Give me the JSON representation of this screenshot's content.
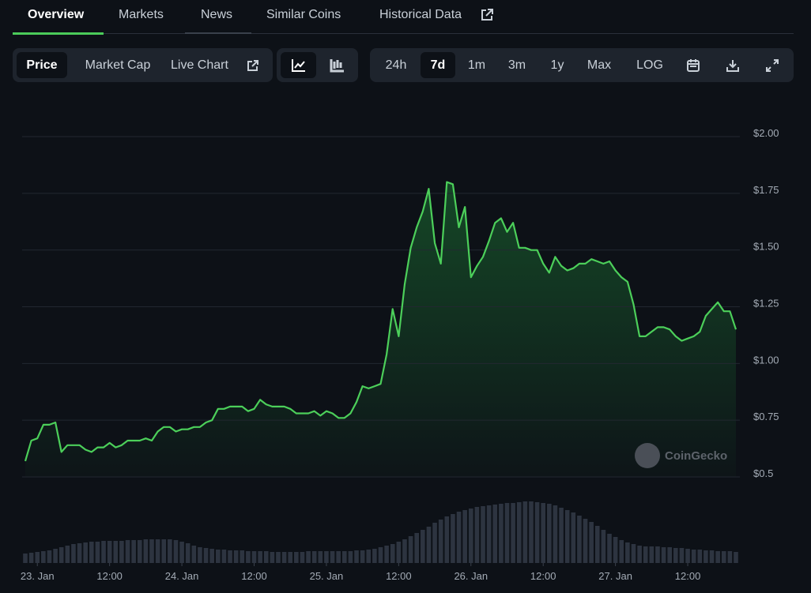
{
  "tabs": [
    "Overview",
    "Markets",
    "News",
    "Similar Coins",
    "Historical Data"
  ],
  "metric_buttons": [
    "Price",
    "Market Cap",
    "Live Chart"
  ],
  "range_buttons": [
    "24h",
    "7d",
    "1m",
    "3m",
    "1y",
    "Max",
    "LOG"
  ],
  "watermark": "CoinGecko",
  "chart_data": {
    "type": "line",
    "x": [
      -2,
      -1,
      0,
      1,
      2,
      3,
      4,
      5,
      6,
      7,
      8,
      9,
      10,
      11,
      12,
      13,
      14,
      15,
      16,
      17,
      18,
      19,
      20,
      21,
      22,
      23,
      24,
      25,
      26,
      27,
      28,
      29,
      30,
      31,
      32,
      33,
      34,
      35,
      36,
      37,
      38,
      39,
      40,
      41,
      42,
      43,
      44,
      45,
      46,
      47,
      48,
      49,
      50,
      51,
      52,
      53,
      54,
      55,
      56,
      57,
      58,
      59,
      60,
      61,
      62,
      63,
      64,
      65,
      66,
      67,
      68,
      69,
      70,
      71,
      72,
      73,
      74,
      75,
      76,
      77,
      78,
      79,
      80,
      81,
      82,
      83,
      84,
      85,
      86,
      87,
      88,
      89,
      90,
      91,
      92,
      93,
      94,
      95,
      96,
      97,
      98,
      99,
      100,
      101,
      102,
      103,
      104,
      105,
      106,
      107,
      108,
      109,
      110,
      111,
      112,
      113,
      114,
      115,
      116
    ],
    "series": [
      {
        "color": "#4ccf5a",
        "values": [
          0.57,
          0.66,
          0.67,
          0.73,
          0.73,
          0.74,
          0.61,
          0.64,
          0.64,
          0.64,
          0.62,
          0.61,
          0.63,
          0.63,
          0.65,
          0.63,
          0.64,
          0.66,
          0.66,
          0.66,
          0.67,
          0.66,
          0.7,
          0.72,
          0.72,
          0.7,
          0.71,
          0.71,
          0.72,
          0.72,
          0.74,
          0.75,
          0.8,
          0.8,
          0.81,
          0.81,
          0.81,
          0.79,
          0.8,
          0.84,
          0.82,
          0.81,
          0.81,
          0.81,
          0.8,
          0.78,
          0.78,
          0.78,
          0.79,
          0.77,
          0.79,
          0.78,
          0.76,
          0.76,
          0.78,
          0.83,
          0.9,
          0.89,
          0.9,
          0.91,
          1.04,
          1.24,
          1.12,
          1.35,
          1.51,
          1.6,
          1.67,
          1.77,
          1.53,
          1.44,
          1.8,
          1.79,
          1.6,
          1.69,
          1.38,
          1.43,
          1.47,
          1.54,
          1.62,
          1.64,
          1.58,
          1.62,
          1.51,
          1.51,
          1.5,
          1.5,
          1.44,
          1.4,
          1.47,
          1.43,
          1.41,
          1.42,
          1.44,
          1.44,
          1.46,
          1.45,
          1.44,
          1.45,
          1.41,
          1.38,
          1.36,
          1.26,
          1.12,
          1.12,
          1.14,
          1.16,
          1.16,
          1.15,
          1.12,
          1.1,
          1.11,
          1.12,
          1.14,
          1.21,
          1.24,
          1.27,
          1.23,
          1.23,
          1.15
        ]
      },
      {
        "color": "#2d3440",
        "axis": "y2",
        "values": [
          12,
          13,
          14,
          15,
          16,
          18,
          20,
          22,
          24,
          25,
          26,
          27,
          27,
          28,
          28,
          28,
          28,
          29,
          29,
          29,
          30,
          30,
          30,
          30,
          30,
          29,
          27,
          25,
          22,
          20,
          19,
          18,
          17,
          17,
          16,
          16,
          16,
          15,
          15,
          15,
          15,
          14,
          14,
          14,
          14,
          14,
          14,
          15,
          15,
          15,
          15,
          15,
          15,
          15,
          15,
          16,
          16,
          17,
          18,
          20,
          22,
          24,
          27,
          30,
          34,
          38,
          42,
          46,
          51,
          55,
          59,
          62,
          65,
          67,
          69,
          71,
          72,
          73,
          74,
          75,
          76,
          76,
          77,
          78,
          78,
          77,
          76,
          75,
          73,
          70,
          67,
          64,
          60,
          56,
          52,
          47,
          42,
          37,
          33,
          29,
          26,
          24,
          22,
          21,
          21,
          21,
          20,
          20,
          19,
          19,
          18,
          17,
          17,
          16,
          16,
          15,
          15,
          15,
          14
        ]
      }
    ],
    "xlim": [
      -2,
      116
    ],
    "xticks": [
      {
        "value": 0,
        "label": "23. Jan"
      },
      {
        "value": 12,
        "label": "12:00"
      },
      {
        "value": 24,
        "label": "24. Jan"
      },
      {
        "value": 36,
        "label": "12:00"
      },
      {
        "value": 48,
        "label": "25. Jan"
      },
      {
        "value": 60,
        "label": "12:00"
      },
      {
        "value": 72,
        "label": "26. Jan"
      },
      {
        "value": 84,
        "label": "12:00"
      },
      {
        "value": 96,
        "label": "27. Jan"
      },
      {
        "value": 108,
        "label": "12:00"
      }
    ],
    "ylim": [
      0.5,
      2
    ],
    "yticks": [
      {
        "value": 0.5,
        "label": "$0.5"
      },
      {
        "value": 0.75,
        "label": "$0.75"
      },
      {
        "value": 1,
        "label": "$1.00"
      },
      {
        "value": 1.25,
        "label": "$1.25"
      },
      {
        "value": 1.5,
        "label": "$1.50"
      },
      {
        "value": 1.75,
        "label": "$1.75"
      },
      {
        "value": 2,
        "label": "$2.00"
      }
    ],
    "y2lim": [
      0,
      100
    ],
    "grid": true
  }
}
